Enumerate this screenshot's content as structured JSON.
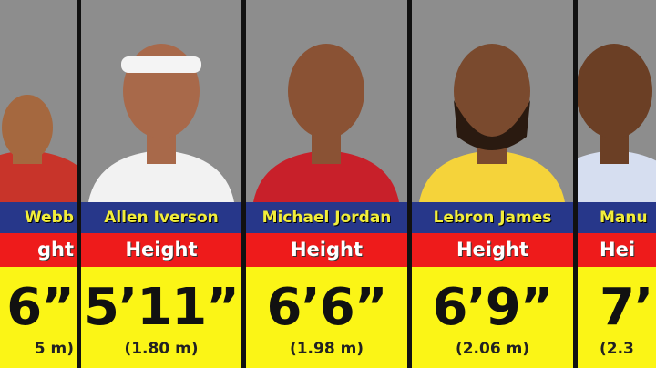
{
  "players": [
    {
      "name": "Webb",
      "label": "ght",
      "imperial": "6”",
      "metric": "5 m)",
      "skin": "#a5683f",
      "jersey": "#c8342a"
    },
    {
      "name": "Allen Iverson",
      "label": "Height",
      "imperial": "5’11”",
      "metric": "(1.80 m)",
      "skin": "#a8694a",
      "jersey": "#f2f2f2"
    },
    {
      "name": "Michael Jordan",
      "label": "Height",
      "imperial": "6’6”",
      "metric": "(1.98 m)",
      "skin": "#8a5234",
      "jersey": "#c8202a"
    },
    {
      "name": "Lebron James",
      "label": "Height",
      "imperial": "6’9”",
      "metric": "(2.06 m)",
      "skin": "#7a4a2e",
      "jersey": "#f5d33a"
    },
    {
      "name": "Manu",
      "label": "Hei",
      "imperial": "7’",
      "metric": "(2.3",
      "skin": "#6b3f25",
      "jersey": "#d6def0"
    }
  ],
  "colors": {
    "name_bar": "#27378a",
    "name_text": "#f2ee3a",
    "label_bar": "#ee1b1b",
    "value_bg": "#fbf516"
  }
}
